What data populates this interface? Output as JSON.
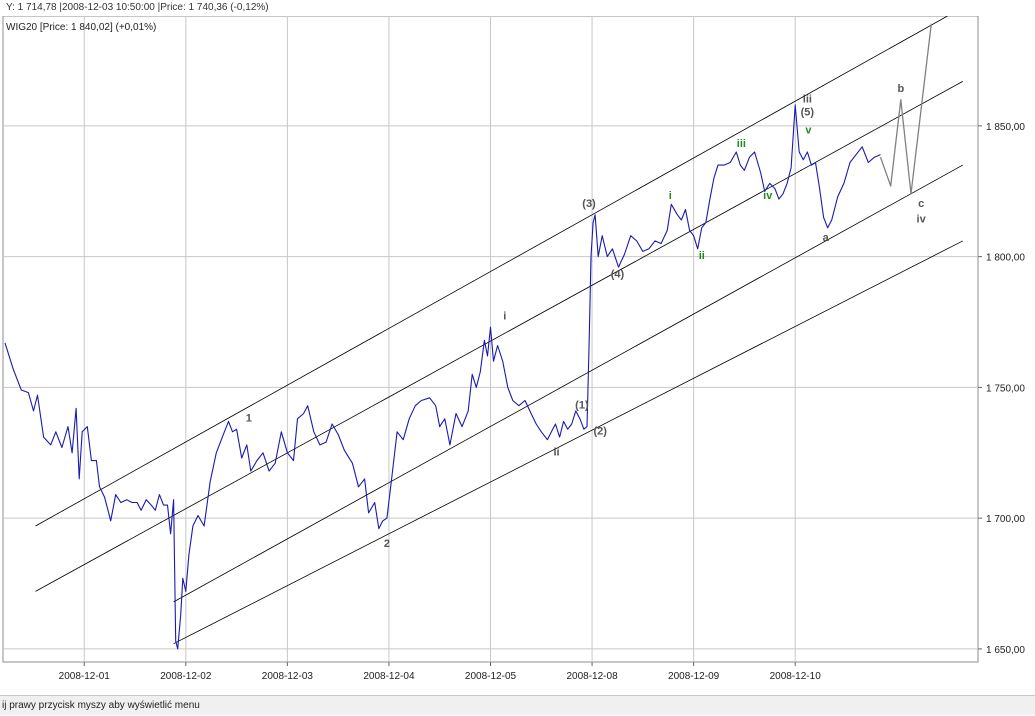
{
  "header": {
    "cursor_info": "Y: 1 714,78 |2008-12-03 10:50:00 |Price: 1 740,36 (-0,12%)"
  },
  "status_bar": {
    "text": "ij prawy przycisk myszy aby wyświetlić menu"
  },
  "chart_data": {
    "type": "line",
    "series_label": "WIG20 [Price: 1 840,02] (+0,01%)",
    "x": {
      "categories": [
        "2008-12-01",
        "2008-12-02",
        "2008-12-03",
        "2008-12-04",
        "2008-12-05",
        "2008-12-08",
        "2008-12-09",
        "2008-12-10"
      ],
      "domain": [
        -0.8,
        8.8
      ]
    },
    "y": {
      "range": [
        1645,
        1892
      ],
      "ticks": [
        1650,
        1700,
        1750,
        1800,
        1850
      ],
      "tick_labels": [
        "1 650,00",
        "1 700,00",
        "1 750,00",
        "1 800,00",
        "1 850,00"
      ]
    },
    "grid": true,
    "colors": {
      "price": "#1a1ab0",
      "channel": "#000000",
      "projection": "#808080",
      "wave_gray": "#555555",
      "wave_green": "#1e8c1e"
    },
    "series": [
      {
        "values": [
          [
            -0.78,
            1767
          ],
          [
            -0.7,
            1757
          ],
          [
            -0.62,
            1749
          ],
          [
            -0.55,
            1748
          ],
          [
            -0.5,
            1741
          ],
          [
            -0.46,
            1747
          ],
          [
            -0.4,
            1731
          ],
          [
            -0.33,
            1728
          ],
          [
            -0.28,
            1733
          ],
          [
            -0.22,
            1727
          ],
          [
            -0.16,
            1735
          ],
          [
            -0.12,
            1725
          ],
          [
            -0.08,
            1742
          ],
          [
            -0.05,
            1715
          ],
          [
            -0.02,
            1733
          ],
          [
            0.03,
            1735
          ],
          [
            0.07,
            1722
          ],
          [
            0.12,
            1722
          ],
          [
            0.15,
            1712
          ],
          [
            0.2,
            1708
          ],
          [
            0.26,
            1699
          ],
          [
            0.31,
            1709
          ],
          [
            0.36,
            1706
          ],
          [
            0.42,
            1707
          ],
          [
            0.47,
            1706
          ],
          [
            0.52,
            1706
          ],
          [
            0.56,
            1703
          ],
          [
            0.61,
            1707
          ],
          [
            0.66,
            1705
          ],
          [
            0.7,
            1703
          ],
          [
            0.74,
            1709
          ],
          [
            0.78,
            1705
          ],
          [
            0.82,
            1705
          ],
          [
            0.85,
            1694
          ],
          [
            0.88,
            1707
          ],
          [
            0.9,
            1653
          ],
          [
            0.92,
            1650
          ],
          [
            0.95,
            1663
          ],
          [
            0.97,
            1677
          ],
          [
            1.0,
            1672
          ],
          [
            1.03,
            1686
          ],
          [
            1.07,
            1697
          ],
          [
            1.12,
            1701
          ],
          [
            1.18,
            1697
          ],
          [
            1.24,
            1714
          ],
          [
            1.3,
            1725
          ],
          [
            1.38,
            1733
          ],
          [
            1.42,
            1737
          ],
          [
            1.46,
            1733
          ],
          [
            1.5,
            1734
          ],
          [
            1.55,
            1723
          ],
          [
            1.6,
            1728
          ],
          [
            1.64,
            1718
          ],
          [
            1.7,
            1722
          ],
          [
            1.76,
            1725
          ],
          [
            1.82,
            1718
          ],
          [
            1.88,
            1721
          ],
          [
            1.94,
            1733
          ],
          [
            2.0,
            1725
          ],
          [
            2.06,
            1722
          ],
          [
            2.1,
            1738
          ],
          [
            2.16,
            1740
          ],
          [
            2.2,
            1743
          ],
          [
            2.26,
            1733
          ],
          [
            2.32,
            1728
          ],
          [
            2.38,
            1729
          ],
          [
            2.44,
            1736
          ],
          [
            2.5,
            1732
          ],
          [
            2.56,
            1726
          ],
          [
            2.64,
            1721
          ],
          [
            2.7,
            1712
          ],
          [
            2.76,
            1715
          ],
          [
            2.8,
            1702
          ],
          [
            2.86,
            1706
          ],
          [
            2.9,
            1696
          ],
          [
            2.94,
            1699
          ],
          [
            2.98,
            1700
          ],
          [
            3.02,
            1713
          ],
          [
            3.08,
            1733
          ],
          [
            3.14,
            1730
          ],
          [
            3.2,
            1738
          ],
          [
            3.26,
            1743
          ],
          [
            3.32,
            1745
          ],
          [
            3.4,
            1746
          ],
          [
            3.46,
            1743
          ],
          [
            3.5,
            1735
          ],
          [
            3.55,
            1738
          ],
          [
            3.6,
            1728
          ],
          [
            3.66,
            1740
          ],
          [
            3.72,
            1735
          ],
          [
            3.78,
            1741
          ],
          [
            3.82,
            1755
          ],
          [
            3.86,
            1750
          ],
          [
            3.9,
            1756
          ],
          [
            3.94,
            1768
          ],
          [
            3.97,
            1762
          ],
          [
            4.0,
            1773
          ],
          [
            4.03,
            1760
          ],
          [
            4.07,
            1766
          ],
          [
            4.12,
            1760
          ],
          [
            4.17,
            1750
          ],
          [
            4.22,
            1745
          ],
          [
            4.28,
            1743
          ],
          [
            4.34,
            1745
          ],
          [
            4.4,
            1740
          ],
          [
            4.45,
            1736
          ],
          [
            4.5,
            1733
          ],
          [
            4.56,
            1730
          ],
          [
            4.6,
            1733
          ],
          [
            4.64,
            1736
          ],
          [
            4.68,
            1731
          ],
          [
            4.72,
            1737
          ],
          [
            4.76,
            1734
          ],
          [
            4.8,
            1736
          ],
          [
            4.84,
            1741
          ],
          [
            4.88,
            1738
          ],
          [
            4.92,
            1734
          ],
          [
            4.95,
            1735
          ],
          [
            4.97,
            1765
          ],
          [
            4.99,
            1800
          ],
          [
            5.01,
            1813
          ],
          [
            5.03,
            1816
          ],
          [
            5.06,
            1800
          ],
          [
            5.1,
            1808
          ],
          [
            5.15,
            1800
          ],
          [
            5.2,
            1803
          ],
          [
            5.26,
            1796
          ],
          [
            5.32,
            1801
          ],
          [
            5.38,
            1808
          ],
          [
            5.44,
            1806
          ],
          [
            5.5,
            1802
          ],
          [
            5.56,
            1803
          ],
          [
            5.62,
            1806
          ],
          [
            5.68,
            1805
          ],
          [
            5.74,
            1810
          ],
          [
            5.78,
            1820
          ],
          [
            5.84,
            1816
          ],
          [
            5.88,
            1814
          ],
          [
            5.92,
            1818
          ],
          [
            5.96,
            1810
          ],
          [
            6.0,
            1808
          ],
          [
            6.04,
            1803
          ],
          [
            6.08,
            1811
          ],
          [
            6.12,
            1813
          ],
          [
            6.16,
            1822
          ],
          [
            6.2,
            1830
          ],
          [
            6.24,
            1835
          ],
          [
            6.3,
            1835
          ],
          [
            6.36,
            1836
          ],
          [
            6.42,
            1840
          ],
          [
            6.46,
            1835
          ],
          [
            6.5,
            1833
          ],
          [
            6.55,
            1838
          ],
          [
            6.6,
            1840
          ],
          [
            6.66,
            1832
          ],
          [
            6.7,
            1825
          ],
          [
            6.75,
            1828
          ],
          [
            6.8,
            1826
          ],
          [
            6.84,
            1822
          ],
          [
            6.88,
            1824
          ],
          [
            6.92,
            1828
          ],
          [
            6.96,
            1834
          ],
          [
            7.0,
            1858
          ],
          [
            7.04,
            1840
          ],
          [
            7.08,
            1837
          ],
          [
            7.12,
            1840
          ],
          [
            7.16,
            1835
          ],
          [
            7.2,
            1836
          ],
          [
            7.24,
            1826
          ],
          [
            7.28,
            1815
          ],
          [
            7.32,
            1811
          ],
          [
            7.36,
            1814
          ],
          [
            7.42,
            1823
          ],
          [
            7.48,
            1828
          ],
          [
            7.54,
            1836
          ],
          [
            7.6,
            1839
          ],
          [
            7.66,
            1842
          ],
          [
            7.72,
            1836
          ],
          [
            7.78,
            1838
          ],
          [
            7.84,
            1839
          ]
        ]
      },
      {
        "name": "projection",
        "values": [
          [
            7.84,
            1838
          ],
          [
            7.94,
            1827
          ],
          [
            8.04,
            1860
          ],
          [
            8.14,
            1824
          ],
          [
            8.34,
            1889
          ]
        ]
      }
    ],
    "channel_lines": [
      [
        [
          -0.48,
          1697
        ],
        [
          8.5,
          1892
        ]
      ],
      [
        [
          -0.48,
          1672
        ],
        [
          8.65,
          1867
        ]
      ],
      [
        [
          0.88,
          1668
        ],
        [
          8.65,
          1835
        ]
      ],
      [
        [
          0.88,
          1652
        ],
        [
          8.65,
          1806
        ]
      ]
    ],
    "wave_labels": [
      {
        "text": "1",
        "x": 1.62,
        "y": 1737,
        "color": "wave_gray"
      },
      {
        "text": "2",
        "x": 2.98,
        "y": 1689,
        "color": "wave_gray"
      },
      {
        "text": "i",
        "x": 4.14,
        "y": 1776,
        "color": "wave_gray"
      },
      {
        "text": "ii",
        "x": 4.65,
        "y": 1724,
        "color": "wave_gray"
      },
      {
        "text": "(1)",
        "x": 4.9,
        "y": 1742,
        "color": "wave_gray"
      },
      {
        "text": "(2)",
        "x": 5.08,
        "y": 1732,
        "color": "wave_gray"
      },
      {
        "text": "(3)",
        "x": 4.97,
        "y": 1819,
        "color": "wave_gray"
      },
      {
        "text": "(4)",
        "x": 5.25,
        "y": 1792,
        "color": "wave_gray"
      },
      {
        "text": "i",
        "x": 5.77,
        "y": 1822,
        "color": "wave_green"
      },
      {
        "text": "ii",
        "x": 6.08,
        "y": 1799,
        "color": "wave_green"
      },
      {
        "text": "iii",
        "x": 6.47,
        "y": 1842,
        "color": "wave_green"
      },
      {
        "text": "iv",
        "x": 6.73,
        "y": 1822,
        "color": "wave_green"
      },
      {
        "text": "iii",
        "x": 7.12,
        "y": 1859,
        "color": "wave_gray"
      },
      {
        "text": "(5)",
        "x": 7.12,
        "y": 1854,
        "color": "wave_gray"
      },
      {
        "text": "v",
        "x": 7.13,
        "y": 1847,
        "color": "wave_green"
      },
      {
        "text": "a",
        "x": 7.3,
        "y": 1806,
        "color": "wave_gray"
      },
      {
        "text": "b",
        "x": 8.04,
        "y": 1863,
        "color": "wave_gray"
      },
      {
        "text": "c",
        "x": 8.24,
        "y": 1819,
        "color": "wave_gray"
      },
      {
        "text": "iv",
        "x": 8.24,
        "y": 1813,
        "color": "wave_gray"
      }
    ]
  }
}
